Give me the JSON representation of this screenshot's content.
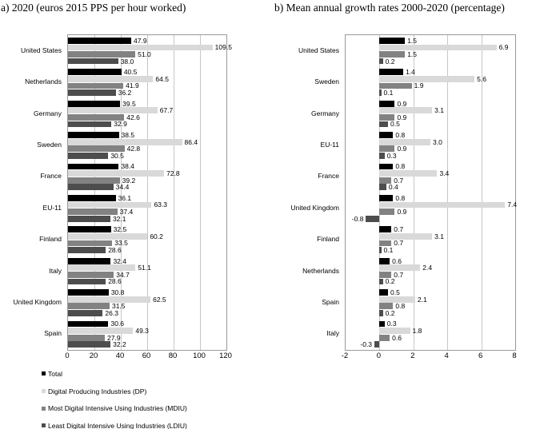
{
  "chart_data": [
    {
      "type": "bar",
      "orientation": "horizontal",
      "title": "a) 2020 (euros 2015 PPS per hour worked)",
      "xlim": [
        0,
        120
      ],
      "xticks": [
        0,
        20,
        40,
        60,
        80,
        100,
        120
      ],
      "grid": true,
      "categories": [
        "United States",
        "Netherlands",
        "Germany",
        "Sweden",
        "France",
        "EU-11",
        "Finland",
        "Italy",
        "United Kingdom",
        "Spain"
      ],
      "series": [
        {
          "name": "Total",
          "color": "#000000",
          "values": [
            47.9,
            40.5,
            39.5,
            38.5,
            38.4,
            36.1,
            32.5,
            32.4,
            30.8,
            30.6
          ]
        },
        {
          "name": "Digital Producing Industries (DP)",
          "color": "#d9d9d9",
          "values": [
            109.5,
            64.5,
            67.7,
            86.4,
            72.8,
            63.3,
            60.2,
            51.1,
            62.5,
            49.3
          ]
        },
        {
          "name": "Most Digital Intensive Using Industries (MDIU)",
          "color": "#828282",
          "values": [
            51.0,
            41.9,
            42.6,
            42.8,
            39.2,
            37.4,
            33.5,
            34.7,
            31.5,
            27.9
          ]
        },
        {
          "name": "Least Digital Intensive Using Industries (LDIU)",
          "color": "#4d4d4d",
          "values": [
            38.0,
            36.2,
            32.9,
            30.5,
            34.4,
            32.1,
            28.6,
            28.6,
            26.3,
            32.2
          ]
        }
      ]
    },
    {
      "type": "bar",
      "orientation": "horizontal",
      "title": "b) Mean annual growth rates 2000-2020 (percentage)",
      "xlim": [
        -2,
        8
      ],
      "xticks": [
        -2,
        0,
        2,
        4,
        6,
        8
      ],
      "grid": true,
      "categories": [
        "United States",
        "Sweden",
        "Germany",
        "EU-11",
        "France",
        "United Kingdom",
        "Finland",
        "Netherlands",
        "Spain",
        "Italy"
      ],
      "series": [
        {
          "name": "Total",
          "color": "#000000",
          "values": [
            1.5,
            1.4,
            0.9,
            0.8,
            0.8,
            0.8,
            0.7,
            0.6,
            0.5,
            0.3
          ]
        },
        {
          "name": "Digital Producing Industries (DP)",
          "color": "#d9d9d9",
          "values": [
            6.9,
            5.6,
            3.1,
            3.0,
            3.4,
            7.4,
            3.1,
            2.4,
            2.1,
            1.8
          ]
        },
        {
          "name": "Most Digital Intensive Using Industries (MDIU)",
          "color": "#828282",
          "values": [
            1.5,
            1.9,
            0.9,
            0.9,
            0.7,
            0.9,
            0.7,
            0.7,
            0.8,
            0.6
          ]
        },
        {
          "name": "Least Digital Intensive Using Industries (LDIU)",
          "color": "#4d4d4d",
          "values": [
            0.2,
            0.1,
            0.5,
            0.3,
            0.4,
            -0.8,
            0.1,
            0.2,
            0.2,
            -0.3
          ]
        }
      ]
    }
  ],
  "legend": {
    "position": "bottom-left",
    "items": [
      {
        "label": "Total",
        "color": "#000000"
      },
      {
        "label": "Digital Producing Industries (DP)",
        "color": "#d9d9d9"
      },
      {
        "label": "Most Digital Intensive Using Industries (MDIU)",
        "color": "#828282"
      },
      {
        "label": "Least Digital Intensive Using Industries (LDIU)",
        "color": "#4d4d4d"
      }
    ]
  },
  "style_colors": {
    "plot_border": "#9a9a9a",
    "gridline": "#c6c6c6",
    "background": "#ffffff"
  }
}
